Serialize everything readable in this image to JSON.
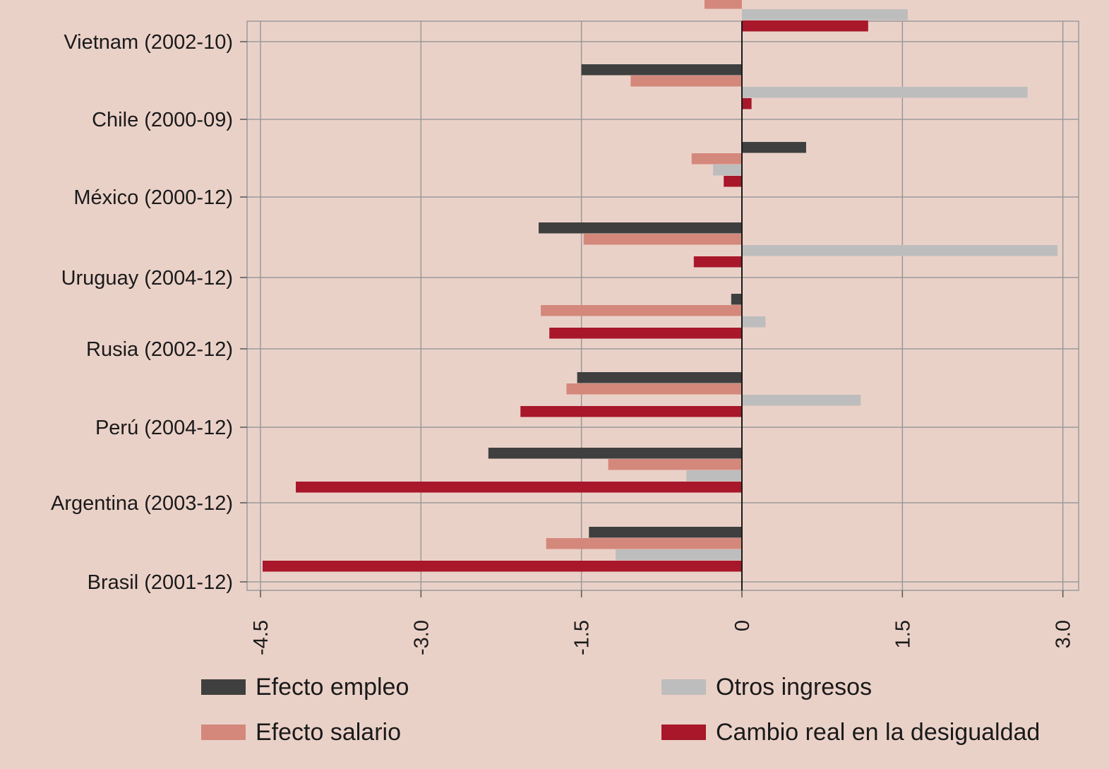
{
  "chart_data": {
    "type": "bar",
    "orientation": "horizontal",
    "categories": [
      "Vietnam (2002-10)",
      "Chile (2000-09)",
      "México (2000-12)",
      "Uruguay (2004-12)",
      "Rusia (2002-12)",
      "Perú (2004-12)",
      "Argentina (2003-12)",
      "Brasil (2001-12)"
    ],
    "series": [
      {
        "name": "Efecto empleo",
        "color": "#3f3f3f",
        "values": [
          0,
          -1.5,
          0.6,
          -1.9,
          -0.1,
          -1.54,
          -2.37,
          -1.43
        ]
      },
      {
        "name": "Efecto salario",
        "color": "#d4887b",
        "values": [
          -0.35,
          -1.04,
          -0.47,
          -1.48,
          -1.88,
          -1.64,
          -1.25,
          -1.83
        ]
      },
      {
        "name": "Otros ingresos",
        "color": "#bdbdbd",
        "values": [
          1.55,
          2.67,
          -0.27,
          2.95,
          0.22,
          1.11,
          -0.52,
          -1.18
        ]
      },
      {
        "name": "Cambio real en la desigualdad",
        "color": "#a8172a",
        "values": [
          1.18,
          0.09,
          -0.17,
          -0.45,
          -1.8,
          -2.07,
          -4.17,
          -4.48
        ]
      }
    ],
    "xticks": [
      -4.5,
      -3.0,
      -1.5,
      0,
      1.5,
      3.0
    ],
    "xtick_labels": [
      "-4.5",
      "-3.0",
      "-1.5",
      "0",
      "1.5",
      "3.0"
    ],
    "xlim": [
      -4.6,
      3.15
    ],
    "grid": true,
    "legend_position": "bottom",
    "title": "",
    "xlabel": "",
    "ylabel": ""
  }
}
